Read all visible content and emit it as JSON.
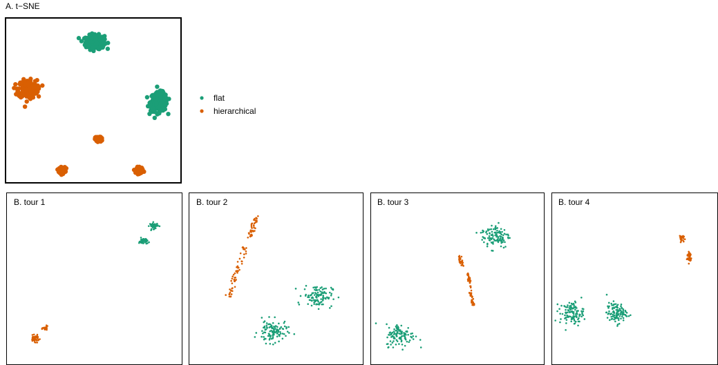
{
  "colors": {
    "flat": "#1b9e77",
    "hierarchical": "#d95f02"
  },
  "legend": {
    "placement": "right-of-panel-A",
    "entries": [
      {
        "label": "flat",
        "color": "#1b9e77"
      },
      {
        "label": "hierarchical",
        "color": "#d95f02"
      }
    ]
  },
  "chart_data": [
    {
      "type": "scatter",
      "title": "A. t−SNE",
      "xlim": [
        0,
        1
      ],
      "ylim": [
        0,
        1
      ],
      "grid": false,
      "axes_visible": false,
      "clusters": [
        {
          "series": "flat",
          "center": [
            0.51,
            0.86
          ],
          "spread": [
            0.045,
            0.035
          ],
          "n": 260
        },
        {
          "series": "flat",
          "center": [
            0.88,
            0.49
          ],
          "spread": [
            0.04,
            0.048
          ],
          "n": 260
        },
        {
          "series": "hierarchical",
          "center": [
            0.12,
            0.57
          ],
          "spread": [
            0.045,
            0.045
          ],
          "n": 260
        },
        {
          "series": "hierarchical",
          "center": [
            0.53,
            0.26
          ],
          "spread": [
            0.015,
            0.012
          ],
          "n": 120
        },
        {
          "series": "hierarchical",
          "center": [
            0.32,
            0.07
          ],
          "spread": [
            0.015,
            0.015
          ],
          "n": 110
        },
        {
          "series": "hierarchical",
          "center": [
            0.77,
            0.07
          ],
          "spread": [
            0.015,
            0.015
          ],
          "n": 110
        }
      ]
    },
    {
      "type": "scatter",
      "title": "B. tour 1",
      "xlim": [
        0,
        1
      ],
      "ylim": [
        0,
        1
      ],
      "grid": false,
      "axes_visible": false,
      "clusters": [
        {
          "series": "flat",
          "center": [
            0.84,
            0.81
          ],
          "spread": [
            0.02,
            0.015
          ],
          "n": 50
        },
        {
          "series": "flat",
          "center": [
            0.78,
            0.72
          ],
          "spread": [
            0.02,
            0.015
          ],
          "n": 50
        },
        {
          "series": "hierarchical",
          "center": [
            0.16,
            0.15
          ],
          "spread": [
            0.02,
            0.015
          ],
          "n": 50
        },
        {
          "series": "hierarchical",
          "center": [
            0.22,
            0.21
          ],
          "spread": [
            0.012,
            0.01
          ],
          "n": 25
        }
      ]
    },
    {
      "type": "scatter",
      "title": "B. tour 2",
      "xlim": [
        0,
        1
      ],
      "ylim": [
        0,
        1
      ],
      "grid": false,
      "axes_visible": false,
      "clusters": [
        {
          "series": "flat",
          "center": [
            0.48,
            0.19
          ],
          "spread": [
            0.07,
            0.055
          ],
          "n": 110
        },
        {
          "series": "flat",
          "center": [
            0.74,
            0.4
          ],
          "spread": [
            0.07,
            0.055
          ],
          "n": 110
        },
        {
          "series": "hierarchical",
          "line": {
            "from": [
              0.23,
              0.39
            ],
            "to": [
              0.32,
              0.69
            ]
          },
          "jitter": 0.008,
          "n": 60
        },
        {
          "series": "hierarchical",
          "line": {
            "from": [
              0.35,
              0.74
            ],
            "to": [
              0.39,
              0.86
            ]
          },
          "jitter": 0.008,
          "n": 40
        }
      ]
    },
    {
      "type": "scatter",
      "title": "B. tour 3",
      "xlim": [
        0,
        1
      ],
      "ylim": [
        0,
        1
      ],
      "grid": false,
      "axes_visible": false,
      "clusters": [
        {
          "series": "flat",
          "center": [
            0.72,
            0.75
          ],
          "spread": [
            0.07,
            0.06
          ],
          "n": 110
        },
        {
          "series": "flat",
          "center": [
            0.17,
            0.17
          ],
          "spread": [
            0.07,
            0.055
          ],
          "n": 110
        },
        {
          "series": "hierarchical",
          "line": {
            "from": [
              0.51,
              0.63
            ],
            "to": [
              0.53,
              0.58
            ]
          },
          "jitter": 0.005,
          "n": 25
        },
        {
          "series": "hierarchical",
          "line": {
            "from": [
              0.56,
              0.54
            ],
            "to": [
              0.59,
              0.35
            ]
          },
          "jitter": 0.005,
          "n": 55
        }
      ]
    },
    {
      "type": "scatter",
      "title": "B. tour 4",
      "xlim": [
        0,
        1
      ],
      "ylim": [
        0,
        1
      ],
      "grid": false,
      "axes_visible": false,
      "clusters": [
        {
          "series": "flat",
          "center": [
            0.12,
            0.3
          ],
          "spread": [
            0.06,
            0.055
          ],
          "n": 110
        },
        {
          "series": "flat",
          "center": [
            0.39,
            0.3
          ],
          "spread": [
            0.05,
            0.05
          ],
          "n": 110
        },
        {
          "series": "hierarchical",
          "center": [
            0.78,
            0.74
          ],
          "spread": [
            0.012,
            0.015
          ],
          "n": 25
        },
        {
          "series": "hierarchical",
          "center": [
            0.83,
            0.63
          ],
          "spread": [
            0.012,
            0.03
          ],
          "n": 40
        }
      ]
    }
  ]
}
